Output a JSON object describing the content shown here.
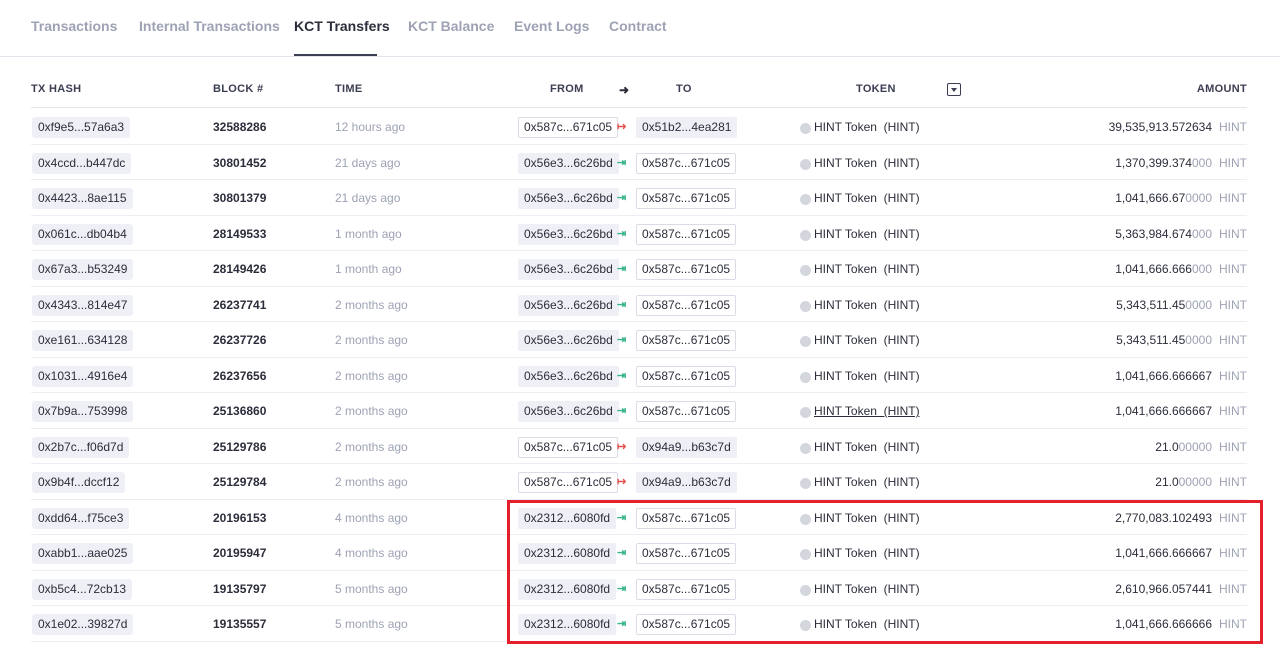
{
  "tabs": [
    {
      "label": "Transactions",
      "active": false
    },
    {
      "label": "Internal Transactions",
      "active": false
    },
    {
      "label": "KCT Transfers",
      "active": true
    },
    {
      "label": "KCT Balance",
      "active": false
    },
    {
      "label": "Event Logs",
      "active": false
    },
    {
      "label": "Contract",
      "active": false
    }
  ],
  "table": {
    "headers": {
      "tx_hash": "TX HASH",
      "block": "BLOCK #",
      "time": "TIME",
      "from": "FROM",
      "direction_icon": "arrow-right-icon",
      "to": "TO",
      "token": "TOKEN",
      "filter_icon": "dropdown-filter-icon",
      "amount": "AMOUNT"
    },
    "rows": [
      {
        "tx_hash": "0xf9e5...57a6a3",
        "block": "32588286",
        "time": "12 hours ago",
        "from": "0x587c...671c05",
        "direction": "out",
        "to": "0x51b2...4ea281",
        "token": "HINT Token (HINT)",
        "amount_main": "39,535,913.572634",
        "amount_faded": "",
        "symbol": "HINT"
      },
      {
        "tx_hash": "0x4ccd...b447dc",
        "block": "30801452",
        "time": "21 days ago",
        "from": "0x56e3...6c26bd",
        "direction": "in",
        "to": "0x587c...671c05",
        "token": "HINT Token (HINT)",
        "amount_main": "1,370,399.374",
        "amount_faded": "000",
        "symbol": "HINT"
      },
      {
        "tx_hash": "0x4423...8ae115",
        "block": "30801379",
        "time": "21 days ago",
        "from": "0x56e3...6c26bd",
        "direction": "in",
        "to": "0x587c...671c05",
        "token": "HINT Token (HINT)",
        "amount_main": "1,041,666.67",
        "amount_faded": "0000",
        "symbol": "HINT"
      },
      {
        "tx_hash": "0x061c...db04b4",
        "block": "28149533",
        "time": "1 month ago",
        "from": "0x56e3...6c26bd",
        "direction": "in",
        "to": "0x587c...671c05",
        "token": "HINT Token (HINT)",
        "amount_main": "5,363,984.674",
        "amount_faded": "000",
        "symbol": "HINT"
      },
      {
        "tx_hash": "0x67a3...b53249",
        "block": "28149426",
        "time": "1 month ago",
        "from": "0x56e3...6c26bd",
        "direction": "in",
        "to": "0x587c...671c05",
        "token": "HINT Token (HINT)",
        "amount_main": "1,041,666.666",
        "amount_faded": "000",
        "symbol": "HINT"
      },
      {
        "tx_hash": "0x4343...814e47",
        "block": "26237741",
        "time": "2 months ago",
        "from": "0x56e3...6c26bd",
        "direction": "in",
        "to": "0x587c...671c05",
        "token": "HINT Token (HINT)",
        "amount_main": "5,343,511.45",
        "amount_faded": "0000",
        "symbol": "HINT"
      },
      {
        "tx_hash": "0xe161...634128",
        "block": "26237726",
        "time": "2 months ago",
        "from": "0x56e3...6c26bd",
        "direction": "in",
        "to": "0x587c...671c05",
        "token": "HINT Token (HINT)",
        "amount_main": "5,343,511.45",
        "amount_faded": "0000",
        "symbol": "HINT"
      },
      {
        "tx_hash": "0x1031...4916e4",
        "block": "26237656",
        "time": "2 months ago",
        "from": "0x56e3...6c26bd",
        "direction": "in",
        "to": "0x587c...671c05",
        "token": "HINT Token (HINT)",
        "amount_main": "1,041,666.666667",
        "amount_faded": "",
        "symbol": "HINT"
      },
      {
        "tx_hash": "0x7b9a...753998",
        "block": "25136860",
        "time": "2 months ago",
        "from": "0x56e3...6c26bd",
        "direction": "in",
        "to": "0x587c...671c05",
        "token": "HINT Token (HINT)",
        "token_hovered": true,
        "amount_main": "1,041,666.666667",
        "amount_faded": "",
        "symbol": "HINT"
      },
      {
        "tx_hash": "0x2b7c...f06d7d",
        "block": "25129786",
        "time": "2 months ago",
        "from": "0x587c...671c05",
        "direction": "out",
        "to": "0x94a9...b63c7d",
        "token": "HINT Token (HINT)",
        "amount_main": "21.0",
        "amount_faded": "00000",
        "symbol": "HINT"
      },
      {
        "tx_hash": "0x9b4f...dccf12",
        "block": "25129784",
        "time": "2 months ago",
        "from": "0x587c...671c05",
        "direction": "out",
        "to": "0x94a9...b63c7d",
        "token": "HINT Token (HINT)",
        "amount_main": "21.0",
        "amount_faded": "00000",
        "symbol": "HINT"
      },
      {
        "tx_hash": "0xdd64...f75ce3",
        "block": "20196153",
        "time": "4 months ago",
        "from": "0x2312...6080fd",
        "direction": "in",
        "to": "0x587c...671c05",
        "token": "HINT Token (HINT)",
        "amount_main": "2,770,083.102493",
        "amount_faded": "",
        "symbol": "HINT"
      },
      {
        "tx_hash": "0xabb1...aae025",
        "block": "20195947",
        "time": "4 months ago",
        "from": "0x2312...6080fd",
        "direction": "in",
        "to": "0x587c...671c05",
        "token": "HINT Token (HINT)",
        "amount_main": "1,041,666.666667",
        "amount_faded": "",
        "symbol": "HINT"
      },
      {
        "tx_hash": "0xb5c4...72cb13",
        "block": "19135797",
        "time": "5 months ago",
        "from": "0x2312...6080fd",
        "direction": "in",
        "to": "0x587c...671c05",
        "token": "HINT Token (HINT)",
        "amount_main": "2,610,966.057441",
        "amount_faded": "",
        "symbol": "HINT"
      },
      {
        "tx_hash": "0x1e02...39827d",
        "block": "19135557",
        "time": "5 months ago",
        "from": "0x2312...6080fd",
        "direction": "in",
        "to": "0x587c...671c05",
        "token": "HINT Token (HINT)",
        "amount_main": "1,041,666.666666",
        "amount_faded": "",
        "symbol": "HINT"
      }
    ]
  },
  "colors": {
    "incoming_arrow": "#35b38a",
    "outgoing_arrow": "#e5514c",
    "highlight_box": "#e3202b"
  },
  "icons": {
    "incoming": "arrow-in-icon",
    "outgoing": "arrow-out-icon",
    "token": "token-circle-icon"
  }
}
